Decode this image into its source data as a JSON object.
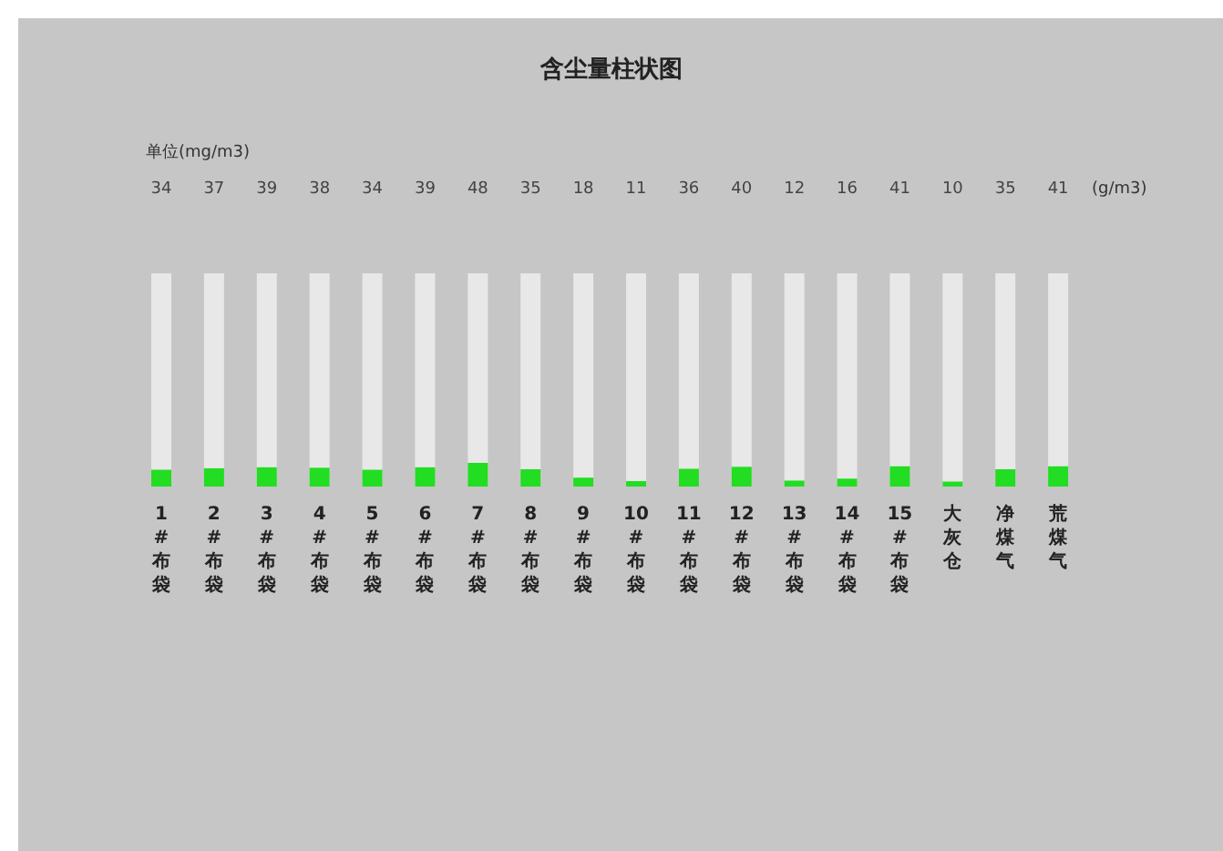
{
  "chart_data": {
    "type": "bar",
    "title": "含尘量柱状图",
    "annotations": [
      "单位(mg/m3)",
      "(g/m3)"
    ],
    "categories": [
      "1#布袋",
      "2#布袋",
      "3#布袋",
      "4#布袋",
      "5#布袋",
      "6#布袋",
      "7#布袋",
      "8#布袋",
      "9#布袋",
      "10#布袋",
      "11#布袋",
      "12#布袋",
      "13#布袋",
      "14#布袋",
      "15#布袋",
      "大灰仓",
      "净煤气",
      "荒煤气"
    ],
    "values": [
      34,
      37,
      39,
      38,
      34,
      39,
      48,
      35,
      18,
      11,
      36,
      40,
      12,
      16,
      41,
      10,
      35,
      41
    ],
    "color": "#22dd22",
    "data_labels": true,
    "tick_labels": "x"
  }
}
